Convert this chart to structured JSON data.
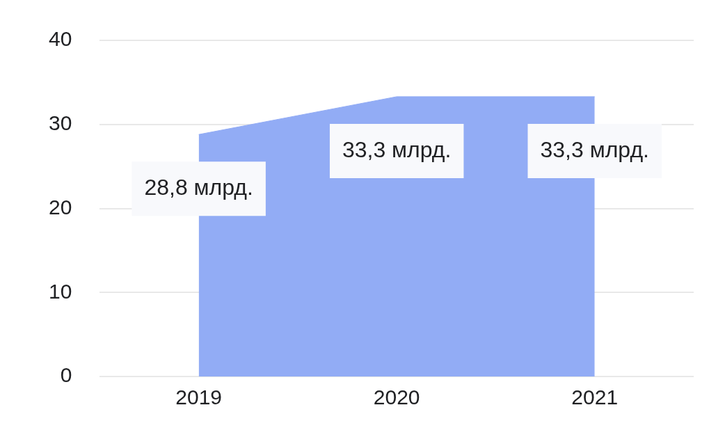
{
  "chart_data": {
    "type": "area",
    "categories": [
      "2019",
      "2020",
      "2021"
    ],
    "series": [
      {
        "color": "#92acf5",
        "values": [
          28.8,
          33.3,
          33.3
        ],
        "value_labels": [
          "28,8 млрд.",
          "33,3 млрд.",
          "33,3 млрд."
        ]
      }
    ],
    "ylim": [
      0,
      40
    ],
    "yticks": [
      0,
      10,
      20,
      30,
      40
    ],
    "grid": "y",
    "legend": false
  }
}
